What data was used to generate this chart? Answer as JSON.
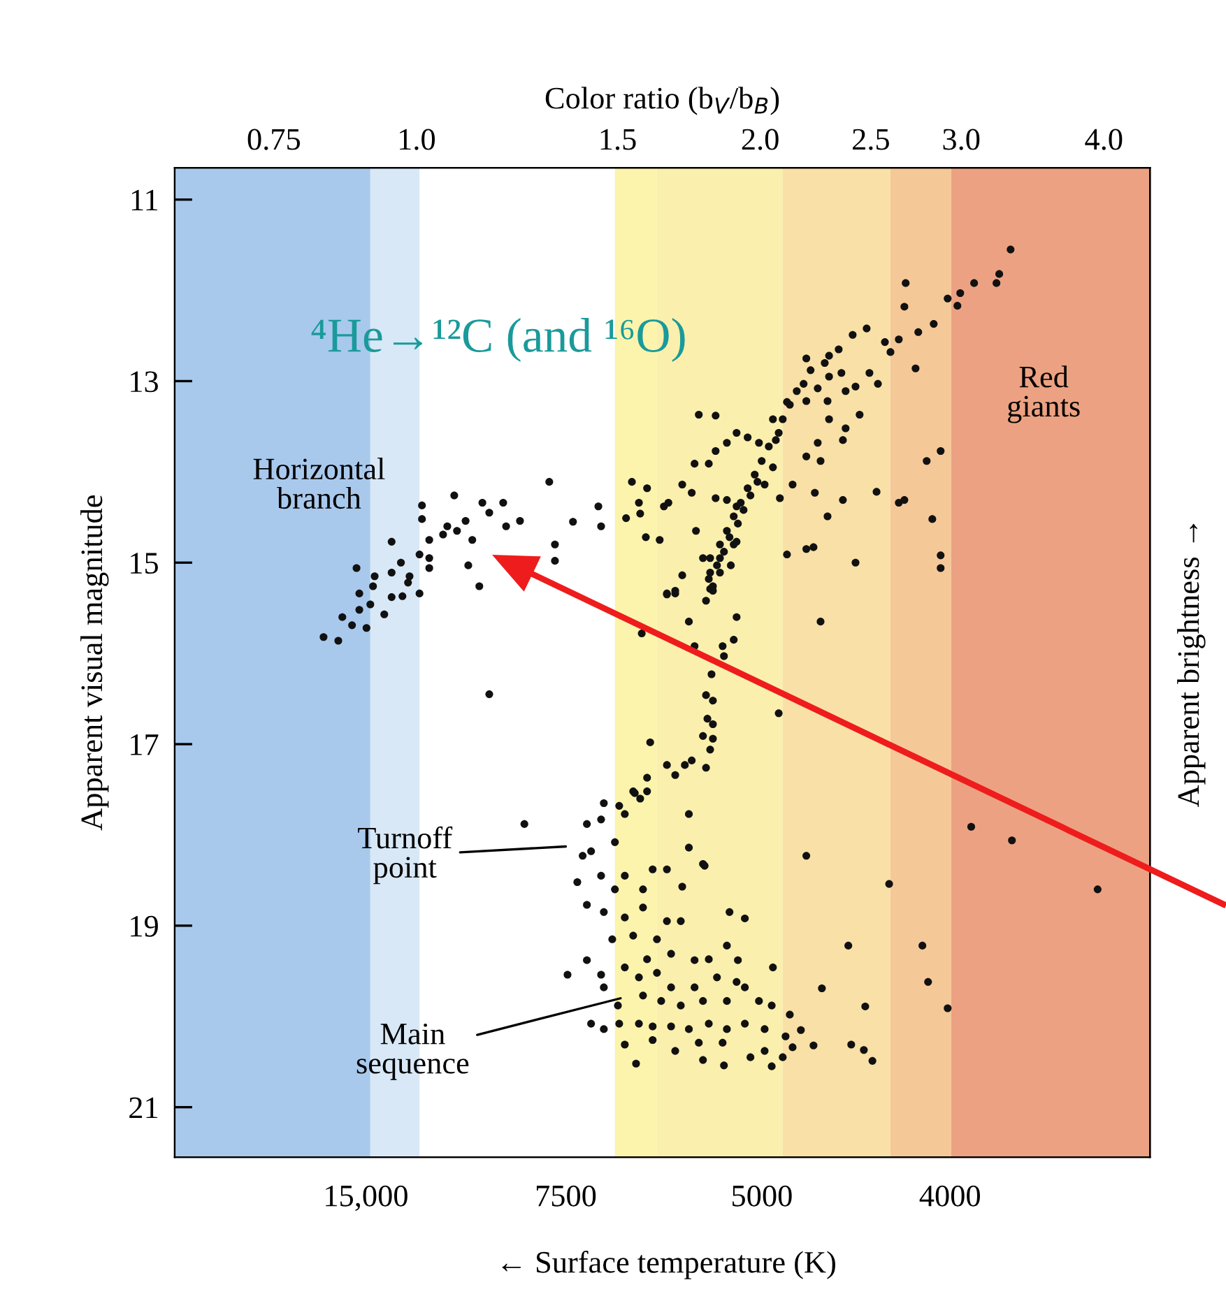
{
  "chart_data": {
    "type": "scatter",
    "xlabel": "Color ratio (b$_{V}$/b$_{B}$)",
    "ylabel": "Apparent visual magnitude",
    "y2label": "Apparent brightness →",
    "annotations": [
      "⁴He→¹²C (and ¹⁶O)",
      "Horizontal\nbranch",
      "Turnoff\npoint",
      {
        "text": "Main\nsequence",
        "x": 1.509,
        "y": 19.8
      },
      "Red\ngiants",
      "15,000",
      "7500",
      "5000",
      "4000",
      "← Surface temperature (K)"
    ],
    "log": "x",
    "xlim": [
      0.614,
      4.39
    ],
    "ylim": [
      21.55,
      10.65
    ],
    "xticks": [
      0.75,
      {
        "value": 1,
        "label": "1.0"
      },
      1.5,
      {
        "value": 2,
        "label": "2.0"
      },
      2.5,
      {
        "value": 3,
        "label": "3.0"
      },
      {
        "value": 4,
        "label": "4.0"
      }
    ],
    "yticks": [
      11,
      13,
      15,
      17,
      19,
      21
    ],
    "bands": [
      {
        "axis": "x",
        "from": 0.614,
        "to": 0.911,
        "color": "#a9c9ec"
      },
      {
        "axis": "x",
        "from": 0.911,
        "to": 1.006,
        "color": "#d8e8f7"
      },
      {
        "axis": "x",
        "from": 1.492,
        "to": 1.624,
        "color": "#fcf4ac"
      },
      {
        "axis": "x",
        "from": 1.624,
        "to": 2.093,
        "color": "#fbefad"
      },
      {
        "axis": "x",
        "from": 2.093,
        "to": 2.6,
        "color": "#f9e0a6"
      },
      {
        "axis": "x",
        "from": 2.6,
        "to": 2.94,
        "color": "#f5c898"
      },
      {
        "axis": "x",
        "from": 2.94,
        "to": 4.39,
        "color": "#eca282"
      }
    ],
    "marker": "circle",
    "grid": false,
    "series": [
      {
        "color": "#111111",
        "x": [
          0.829,
          0.854,
          0.861,
          0.878,
          0.904,
          0.891,
          0.911,
          0.937,
          0.891,
          0.916,
          0.886,
          0.919,
          0.951,
          0.972,
          1.006,
          0.951,
          0.969,
          0.986,
          1.006,
          1.026,
          0.951,
          1.026,
          1.055,
          1.085,
          1.104,
          1.064,
          1.011,
          1.011,
          1.079,
          1.142,
          1.158,
          1.191,
          1.198,
          1.232,
          1.11,
          1.135,
          1.307,
          1.371,
          1.322,
          1.322,
          1.158,
          0.983,
          1.026,
          1.119,
          1.443,
          1.451,
          1.544,
          1.566,
          1.57,
          1.526,
          1.588,
          1.633,
          1.592,
          1.647,
          1.662,
          1.709,
          1.742,
          1.757,
          1.782,
          1.808,
          1.844,
          1.709,
          1.657,
          1.685,
          1.808,
          1.828,
          1.87,
          1.907,
          1.907,
          1.752,
          1.803,
          1.828,
          1.87,
          1.907,
          1.95,
          1.995,
          1.767,
          1.828,
          2.076,
          2.052,
          2.111,
          2.195,
          2.246,
          2.298,
          2.356,
          2.291,
          2.298,
          2.195,
          2.298,
          2.376,
          2.424,
          2.493,
          2.536,
          2.444,
          2.376,
          2.363,
          2.246,
          2.195,
          2.259,
          2.052,
          2.018,
          2.081,
          2.135,
          2.233,
          2.291,
          2.363,
          2.195,
          2.111,
          2.227,
          2.529,
          2.645,
          2.675,
          2.83,
          2.798,
          2.878,
          2.878,
          2.878,
          2.424,
          2.736,
          2.572,
          2.645,
          2.601,
          2.751,
          2.838,
          2.675,
          2.682,
          2.919,
          2.994,
          2.977,
          3.079,
          3.221,
          3.239,
          3.314,
          1.793,
          1.818,
          1.808,
          1.833,
          1.844,
          1.87,
          1.896,
          1.923,
          1.95,
          1.978,
          2.006,
          2.035,
          2.064,
          2.093,
          2.123,
          2.153,
          2.183,
          2.214,
          2.278,
          2.343,
          2.41,
          2.479,
          1.859,
          1.88,
          1.912,
          1.934,
          1.844,
          1.885,
          1.803,
          1.896,
          1.961,
          1.989,
          1.657,
          1.685,
          1.818,
          1.732,
          1.907,
          2.259,
          1.575,
          1.752,
          1.896,
          1.854,
          1.859,
          1.813,
          1.793,
          1.818,
          2.076,
          1.798,
          1.818,
          1.782,
          1.818,
          1.808,
          1.602,
          1.657,
          1.718,
          1.742,
          1.685,
          1.793,
          1.592,
          1.548,
          1.592,
          1.57,
          1.732,
          1.732,
          2.195,
          1.782,
          1.553,
          1.459,
          1.505,
          1.41,
          1.451,
          1.522,
          1.398,
          1.422,
          1.492,
          1.383,
          1.41,
          1.451,
          1.492,
          1.522,
          1.579,
          1.61,
          1.657,
          1.709,
          1.459,
          1.522,
          1.579,
          1.657,
          1.704,
          1.88,
          1.939,
          1.87,
          1.484,
          1.548,
          1.624,
          1.592,
          1.671,
          1.752,
          1.803,
          1.912,
          1.41,
          1.356,
          1.451,
          1.459,
          1.522,
          1.566,
          1.624,
          1.671,
          1.752,
          1.833,
          1.907,
          1.939,
          2.052,
          1.579,
          1.638,
          1.704,
          1.782,
          1.87,
          1.995,
          2.047,
          2.123,
          1.501,
          1.422,
          1.459,
          1.505,
          1.566,
          1.61,
          1.671,
          1.732,
          1.803,
          1.87,
          1.939,
          2.018,
          2.105,
          2.171,
          1.522,
          1.61,
          1.685,
          1.767,
          1.854,
          1.961,
          2.018,
          2.047,
          2.135,
          2.093,
          1.557,
          1.859,
          1.782,
          2.227,
          2.403,
          2.465,
          2.508,
          2.472,
          2.265,
          2.389,
          2.594,
          3.061,
          3.323,
          1.788,
          3.95,
          1.243,
          2.774,
          2.806,
          2.919
        ],
        "values": [
          15.82,
          15.86,
          15.6,
          15.69,
          15.72,
          15.52,
          15.46,
          15.57,
          15.34,
          15.26,
          15.06,
          15.15,
          15.38,
          15.37,
          15.34,
          15.11,
          15.0,
          15.15,
          14.91,
          14.95,
          14.77,
          14.75,
          14.69,
          14.65,
          14.54,
          14.6,
          14.52,
          14.37,
          14.26,
          14.34,
          14.45,
          14.34,
          14.6,
          14.54,
          15.03,
          15.26,
          14.11,
          14.55,
          14.8,
          14.98,
          16.45,
          15.22,
          15.06,
          14.75,
          14.38,
          14.6,
          14.11,
          14.34,
          14.46,
          14.51,
          14.72,
          14.75,
          14.18,
          14.38,
          14.34,
          14.14,
          14.23,
          14.65,
          14.95,
          14.95,
          14.95,
          15.14,
          15.34,
          15.31,
          15.29,
          14.29,
          14.31,
          14.38,
          14.77,
          13.91,
          13.91,
          13.77,
          13.68,
          13.57,
          13.62,
          13.68,
          13.37,
          13.38,
          13.57,
          13.42,
          13.23,
          13.22,
          13.08,
          12.95,
          12.91,
          13.22,
          13.42,
          12.75,
          12.72,
          13.11,
          13.06,
          12.91,
          13.03,
          13.37,
          13.52,
          13.65,
          13.68,
          13.83,
          13.88,
          13.95,
          14.14,
          14.29,
          14.14,
          14.23,
          14.49,
          14.31,
          14.85,
          14.91,
          14.83,
          14.22,
          14.34,
          14.31,
          14.52,
          13.88,
          13.77,
          14.92,
          15.06,
          15.0,
          12.86,
          12.57,
          12.54,
          12.68,
          12.46,
          12.37,
          12.18,
          11.92,
          12.09,
          12.03,
          12.17,
          11.92,
          11.92,
          11.82,
          11.55,
          15.42,
          15.26,
          15.11,
          15.03,
          14.8,
          14.65,
          14.49,
          14.34,
          14.18,
          14.03,
          13.88,
          13.72,
          13.65,
          13.42,
          13.26,
          13.11,
          13.03,
          12.88,
          12.8,
          12.65,
          12.49,
          12.42,
          14.88,
          14.72,
          14.57,
          14.42,
          15.11,
          15.03,
          15.18,
          14.8,
          14.26,
          14.11,
          15.35,
          15.34,
          15.31,
          15.65,
          15.6,
          15.65,
          15.78,
          15.92,
          15.85,
          15.92,
          16.03,
          16.23,
          16.46,
          16.52,
          16.66,
          16.72,
          16.78,
          16.91,
          16.94,
          17.06,
          16.98,
          17.23,
          17.23,
          17.18,
          17.34,
          17.26,
          17.37,
          17.52,
          17.52,
          17.6,
          17.77,
          18.14,
          18.23,
          18.32,
          17.54,
          17.65,
          17.68,
          17.88,
          17.83,
          17.77,
          18.23,
          18.18,
          18.08,
          18.52,
          18.77,
          18.45,
          18.6,
          18.45,
          18.6,
          18.38,
          18.38,
          18.57,
          18.85,
          18.91,
          18.8,
          18.95,
          18.95,
          18.85,
          18.92,
          19.22,
          19.15,
          19.11,
          19.15,
          19.37,
          19.31,
          19.38,
          19.37,
          19.38,
          19.38,
          19.54,
          19.54,
          19.68,
          19.46,
          19.57,
          19.52,
          19.68,
          19.68,
          19.57,
          19.62,
          19.68,
          19.46,
          19.77,
          19.83,
          19.88,
          19.83,
          19.83,
          19.83,
          19.88,
          19.98,
          19.88,
          20.08,
          20.14,
          20.08,
          20.08,
          20.11,
          20.11,
          20.14,
          20.08,
          20.14,
          20.08,
          20.14,
          20.22,
          20.15,
          20.31,
          20.26,
          20.38,
          20.29,
          20.29,
          20.45,
          20.38,
          20.55,
          20.34,
          20.45,
          20.52,
          20.54,
          20.48,
          20.32,
          20.31,
          20.37,
          20.49,
          19.89,
          19.69,
          19.22,
          18.54,
          17.91,
          18.06,
          18.34,
          18.6,
          17.88,
          19.22,
          19.62,
          19.91
        ]
      }
    ]
  }
}
